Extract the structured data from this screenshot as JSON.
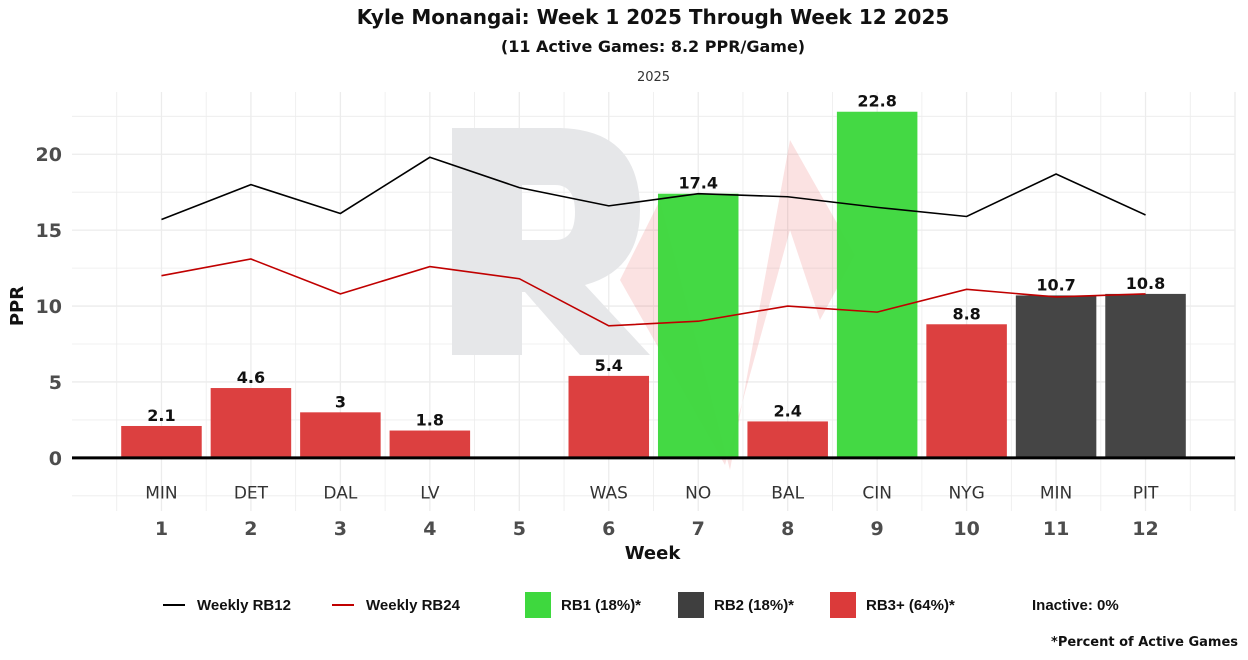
{
  "chart_data": {
    "type": "bar",
    "title": "Kyle Monangai: Week 1 2025 Through Week 12 2025",
    "subtitle": "(11 Active Games: 8.2 PPR/Game)",
    "facet_label": "2025",
    "xlabel": "Week",
    "ylabel": "PPR",
    "xlim": [
      0,
      13
    ],
    "ylim": [
      -3.5,
      24.1
    ],
    "y_ticks": [
      0,
      5,
      10,
      15,
      20
    ],
    "x_ticks": [
      1,
      2,
      3,
      4,
      5,
      6,
      7,
      8,
      9,
      10,
      11,
      12
    ],
    "grid": true,
    "bars": [
      {
        "week": 1,
        "opponent": "MIN",
        "value": 2.1,
        "label": "2.1",
        "tier": "RB3+"
      },
      {
        "week": 2,
        "opponent": "DET",
        "value": 4.6,
        "label": "4.6",
        "tier": "RB3+"
      },
      {
        "week": 3,
        "opponent": "DAL",
        "value": 3,
        "label": "3",
        "tier": "RB3+"
      },
      {
        "week": 4,
        "opponent": "LV",
        "value": 1.8,
        "label": "1.8",
        "tier": "RB3+"
      },
      {
        "week": 6,
        "opponent": "WAS",
        "value": 5.4,
        "label": "5.4",
        "tier": "RB3+"
      },
      {
        "week": 7,
        "opponent": "NO",
        "value": 17.4,
        "label": "17.4",
        "tier": "RB1"
      },
      {
        "week": 8,
        "opponent": "BAL",
        "value": 2.4,
        "label": "2.4",
        "tier": "RB3+"
      },
      {
        "week": 9,
        "opponent": "CIN",
        "value": 22.8,
        "label": "22.8",
        "tier": "RB1"
      },
      {
        "week": 10,
        "opponent": "NYG",
        "value": 8.8,
        "label": "8.8",
        "tier": "RB3+"
      },
      {
        "week": 11,
        "opponent": "MIN",
        "value": 10.7,
        "label": "10.7",
        "tier": "RB2"
      },
      {
        "week": 12,
        "opponent": "PIT",
        "value": 10.8,
        "label": "10.8",
        "tier": "RB2"
      }
    ],
    "lines": [
      {
        "name": "Weekly RB12",
        "color": "#000000",
        "x": [
          1,
          2,
          3,
          4,
          5,
          6,
          7,
          8,
          9,
          10,
          11,
          12
        ],
        "y": [
          15.7,
          18.0,
          16.1,
          19.8,
          17.8,
          16.6,
          17.4,
          17.2,
          16.5,
          15.9,
          18.7,
          16.0
        ]
      },
      {
        "name": "Weekly RB24",
        "color": "#c00000",
        "x": [
          1,
          2,
          3,
          4,
          5,
          6,
          7,
          8,
          9,
          10,
          11,
          12
        ],
        "y": [
          12.0,
          13.1,
          10.8,
          12.6,
          11.8,
          8.7,
          9.0,
          10.0,
          9.6,
          11.1,
          10.6,
          10.8
        ]
      }
    ],
    "tier_colors": {
      "RB1": "#3ed83e",
      "RB2": "#3f3f3f",
      "RB3+": "#db3a3a"
    },
    "legend": {
      "position": "bottom",
      "items": [
        {
          "kind": "line",
          "label": "Weekly RB12",
          "color": "#000000"
        },
        {
          "kind": "line",
          "label": "Weekly RB24",
          "color": "#c00000"
        },
        {
          "kind": "box",
          "label": "RB1 (18%)*",
          "color": "#3ed83e"
        },
        {
          "kind": "box",
          "label": "RB2 (18%)*",
          "color": "#3f3f3f"
        },
        {
          "kind": "box",
          "label": "RB3+ (64%)*",
          "color": "#db3a3a"
        },
        {
          "kind": "text",
          "label": "Inactive: 0%"
        }
      ],
      "note": "*Percent of Active Games"
    }
  }
}
